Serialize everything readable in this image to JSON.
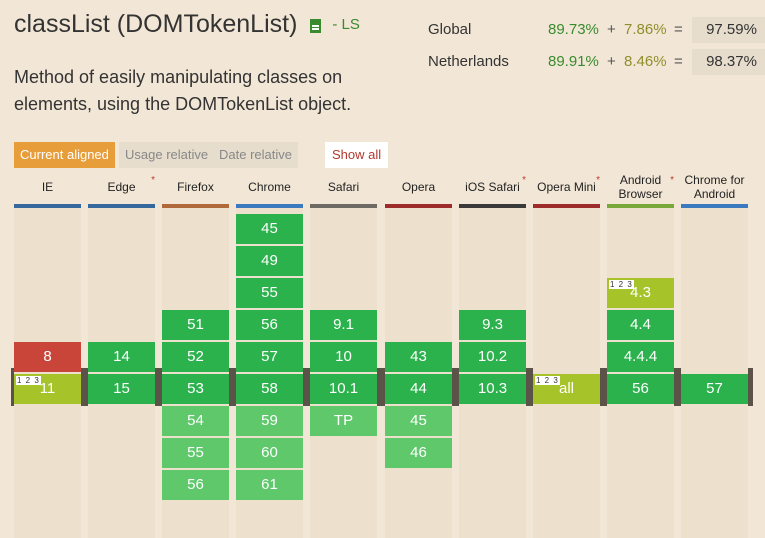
{
  "feature": {
    "title": "classList (DOMTokenList)",
    "status": "- LS",
    "description": "Method of easily manipulating classes on elements, using the DOMTokenList object."
  },
  "usage": [
    {
      "region": "Global",
      "full": "89.73%",
      "plus": "+",
      "partial": "7.86%",
      "eq": "=",
      "total": "97.59%"
    },
    {
      "region": "Netherlands",
      "full": "89.91%",
      "plus": "+",
      "partial": "8.46%",
      "eq": "=",
      "total": "98.37%"
    }
  ],
  "tabs": {
    "current": "Current aligned",
    "usage": "Usage relative",
    "date": "Date relative",
    "show_all": "Show all"
  },
  "colors": {
    "supported": "#2bb24c",
    "unsupported": "#c9453a",
    "partial": "#a6c42a",
    "future": "#5ec86a",
    "background": "#f2e7d6"
  },
  "browsers": [
    {
      "name": "IE",
      "bar": "#35689d",
      "flag": "",
      "rows": [
        [
          -1,
          "8",
          "n"
        ],
        [
          0,
          "11",
          "a",
          "1 2 3"
        ]
      ]
    },
    {
      "name": "Edge",
      "bar": "#35689d",
      "flag": "*",
      "rows": [
        [
          -1,
          "14",
          "y"
        ],
        [
          0,
          "15",
          "y"
        ]
      ]
    },
    {
      "name": "Firefox",
      "bar": "#b0693b",
      "flag": "",
      "rows": [
        [
          -2,
          "51",
          "y"
        ],
        [
          -1,
          "52",
          "y"
        ],
        [
          0,
          "53",
          "y"
        ],
        [
          1,
          "54",
          "f"
        ],
        [
          2,
          "55",
          "f"
        ],
        [
          3,
          "56",
          "f"
        ]
      ]
    },
    {
      "name": "Chrome",
      "bar": "#3c7abf",
      "flag": "",
      "rows": [
        [
          -5,
          "45",
          "y"
        ],
        [
          -4,
          "49",
          "y"
        ],
        [
          -3,
          "55",
          "y"
        ],
        [
          -2,
          "56",
          "y"
        ],
        [
          -1,
          "57",
          "y"
        ],
        [
          0,
          "58",
          "y"
        ],
        [
          1,
          "59",
          "f"
        ],
        [
          2,
          "60",
          "f"
        ],
        [
          3,
          "61",
          "f"
        ]
      ]
    },
    {
      "name": "Safari",
      "bar": "#6d6a63",
      "flag": "",
      "rows": [
        [
          -2,
          "9.1",
          "y"
        ],
        [
          -1,
          "10",
          "y"
        ],
        [
          0,
          "10.1",
          "y"
        ],
        [
          1,
          "TP",
          "f"
        ]
      ]
    },
    {
      "name": "Opera",
      "bar": "#9d2c2b",
      "flag": "",
      "rows": [
        [
          -1,
          "43",
          "y"
        ],
        [
          0,
          "44",
          "y"
        ],
        [
          1,
          "45",
          "f"
        ],
        [
          2,
          "46",
          "f"
        ]
      ]
    },
    {
      "name": "iOS Safari",
      "bar": "#3a3a3a",
      "flag": "*",
      "rows": [
        [
          -2,
          "9.3",
          "y"
        ],
        [
          -1,
          "10.2",
          "y"
        ],
        [
          0,
          "10.3",
          "y"
        ]
      ]
    },
    {
      "name": "Opera Mini",
      "bar": "#9d2c2b",
      "flag": "*",
      "rows": [
        [
          0,
          "all",
          "a",
          "1 2 3"
        ]
      ]
    },
    {
      "name": "Android Browser",
      "bar": "#78a83a",
      "flag": "*",
      "rows": [
        [
          -3,
          "4.3",
          "a",
          "1 2 3"
        ],
        [
          -2,
          "4.4",
          "y"
        ],
        [
          -1,
          "4.4.4",
          "y"
        ],
        [
          0,
          "56",
          "y"
        ]
      ]
    },
    {
      "name": "Chrome for Android",
      "bar": "#3c7abf",
      "flag": "",
      "rows": [
        [
          0,
          "57",
          "y"
        ]
      ]
    }
  ]
}
